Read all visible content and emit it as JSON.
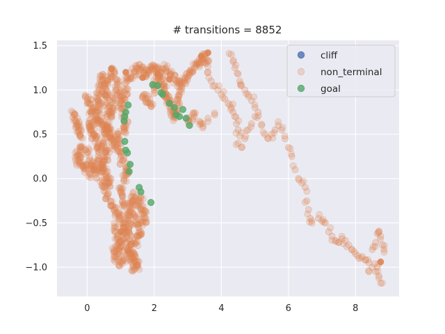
{
  "chart_data": {
    "type": "scatter",
    "title": "# transitions = 8852",
    "xlabel": "",
    "ylabel": "",
    "xlim": [
      -0.9,
      9.3
    ],
    "ylim": [
      -1.33,
      1.56
    ],
    "x_ticks": [
      0,
      2,
      4,
      6,
      8
    ],
    "y_ticks": [
      -1.0,
      -0.5,
      0.0,
      0.5,
      1.0,
      1.5
    ],
    "x_tick_labels": [
      "0",
      "2",
      "4",
      "6",
      "8"
    ],
    "y_tick_labels": [
      "−1.0",
      "−0.5",
      "0.0",
      "0.5",
      "1.0",
      "1.5"
    ],
    "grid": true,
    "legend_position": "top-right",
    "series": [
      {
        "name": "cliff",
        "color": "#4c72b0",
        "points": []
      },
      {
        "name": "non_terminal",
        "color": "#dd8452",
        "points": [
          [
            -0.4,
            0.72
          ],
          [
            -0.35,
            0.65
          ],
          [
            -0.3,
            0.6
          ],
          [
            -0.25,
            0.55
          ],
          [
            -0.2,
            0.5
          ],
          [
            -0.2,
            0.35
          ],
          [
            -0.25,
            0.28
          ],
          [
            -0.3,
            0.25
          ],
          [
            -0.25,
            0.2
          ],
          [
            -0.15,
            0.15
          ],
          [
            -0.05,
            0.1
          ],
          [
            0.0,
            0.9
          ],
          [
            0.05,
            0.85
          ],
          [
            0.1,
            0.75
          ],
          [
            0.05,
            0.62
          ],
          [
            0.1,
            0.55
          ],
          [
            0.0,
            0.3
          ],
          [
            0.05,
            0.2
          ],
          [
            0.15,
            0.15
          ],
          [
            0.1,
            0.05
          ],
          [
            0.2,
            0.5
          ],
          [
            0.25,
            0.45
          ],
          [
            0.3,
            0.35
          ],
          [
            0.35,
            0.3
          ],
          [
            0.3,
            0.2
          ],
          [
            0.3,
            0.9
          ],
          [
            0.35,
            1.0
          ],
          [
            0.4,
            1.1
          ],
          [
            0.45,
            1.15
          ],
          [
            0.5,
            1.05
          ],
          [
            0.55,
            0.95
          ],
          [
            0.6,
            0.85
          ],
          [
            0.65,
            0.75
          ],
          [
            0.7,
            0.7
          ],
          [
            0.75,
            0.8
          ],
          [
            0.8,
            0.9
          ],
          [
            0.85,
            1.0
          ],
          [
            0.9,
            1.08
          ],
          [
            0.95,
            0.95
          ],
          [
            1.0,
            0.85
          ],
          [
            0.6,
            0.6
          ],
          [
            0.65,
            0.55
          ],
          [
            0.7,
            0.5
          ],
          [
            0.75,
            0.45
          ],
          [
            0.8,
            0.4
          ],
          [
            0.85,
            0.35
          ],
          [
            0.55,
            0.5
          ],
          [
            0.5,
            0.55
          ],
          [
            0.45,
            0.6
          ],
          [
            0.4,
            0.65
          ],
          [
            0.45,
            0.15
          ],
          [
            0.5,
            0.1
          ],
          [
            0.55,
            0.05
          ],
          [
            0.6,
            0.0
          ],
          [
            0.65,
            -0.05
          ],
          [
            0.5,
            0.2
          ],
          [
            0.4,
            0.12
          ],
          [
            0.45,
            -0.05
          ],
          [
            0.55,
            -0.1
          ],
          [
            0.6,
            -0.2
          ],
          [
            0.7,
            -0.3
          ],
          [
            0.8,
            -0.35
          ],
          [
            0.9,
            -0.4
          ],
          [
            1.0,
            -0.45
          ],
          [
            1.1,
            -0.5
          ],
          [
            0.85,
            -0.55
          ],
          [
            0.9,
            -0.65
          ],
          [
            0.95,
            -0.72
          ],
          [
            1.0,
            -0.78
          ],
          [
            1.05,
            -0.7
          ],
          [
            1.1,
            -0.62
          ],
          [
            1.15,
            -0.55
          ],
          [
            1.2,
            -0.6
          ],
          [
            1.25,
            -0.68
          ],
          [
            1.3,
            -0.75
          ],
          [
            1.35,
            -0.82
          ],
          [
            1.4,
            -0.88
          ],
          [
            1.45,
            -0.95
          ],
          [
            1.5,
            -0.98
          ],
          [
            1.38,
            -1.0
          ],
          [
            1.3,
            -0.92
          ],
          [
            1.25,
            -0.85
          ],
          [
            1.2,
            -0.45
          ],
          [
            1.25,
            -0.38
          ],
          [
            1.3,
            -0.3
          ],
          [
            1.35,
            -0.25
          ],
          [
            1.4,
            -0.2
          ],
          [
            1.5,
            -0.3
          ],
          [
            1.6,
            -0.35
          ],
          [
            1.7,
            -0.4
          ],
          [
            1.75,
            -0.45
          ],
          [
            1.6,
            -0.5
          ],
          [
            1.55,
            -0.6
          ],
          [
            1.5,
            -0.65
          ],
          [
            1.45,
            -0.72
          ],
          [
            1.1,
            -0.3
          ],
          [
            1.05,
            -0.2
          ],
          [
            1.0,
            -0.1
          ],
          [
            1.1,
            0.0
          ],
          [
            1.2,
            0.05
          ],
          [
            1.15,
            0.12
          ],
          [
            1.05,
            0.2
          ],
          [
            1.0,
            0.3
          ],
          [
            0.95,
            0.4
          ],
          [
            0.9,
            0.5
          ],
          [
            1.1,
            0.55
          ],
          [
            1.15,
            0.6
          ],
          [
            1.1,
            0.7
          ],
          [
            1.05,
            0.8
          ],
          [
            1.1,
            0.9
          ],
          [
            1.15,
            1.0
          ],
          [
            1.2,
            1.1
          ],
          [
            1.3,
            1.15
          ],
          [
            1.4,
            1.2
          ],
          [
            1.5,
            1.25
          ],
          [
            1.6,
            1.22
          ],
          [
            1.7,
            1.18
          ],
          [
            1.8,
            1.2
          ],
          [
            1.9,
            1.25
          ],
          [
            2.0,
            1.27
          ],
          [
            2.1,
            1.22
          ],
          [
            2.15,
            1.15
          ],
          [
            2.2,
            1.1
          ],
          [
            2.25,
            1.05
          ],
          [
            2.3,
            1.0
          ],
          [
            2.35,
            0.95
          ],
          [
            2.4,
            0.9
          ],
          [
            2.45,
            0.85
          ],
          [
            2.5,
            0.8
          ],
          [
            2.55,
            0.75
          ],
          [
            2.6,
            0.7
          ],
          [
            2.65,
            0.75
          ],
          [
            2.7,
            0.85
          ],
          [
            2.75,
            0.95
          ],
          [
            2.8,
            1.05
          ],
          [
            2.9,
            1.1
          ],
          [
            3.0,
            1.15
          ],
          [
            3.1,
            1.2
          ],
          [
            3.2,
            1.25
          ],
          [
            3.3,
            1.3
          ],
          [
            3.4,
            1.35
          ],
          [
            3.5,
            1.4
          ],
          [
            3.55,
            1.3
          ],
          [
            3.6,
            1.2
          ],
          [
            3.7,
            1.1
          ],
          [
            3.8,
            1.05
          ],
          [
            3.9,
            1.0
          ],
          [
            4.0,
            0.95
          ],
          [
            4.1,
            0.9
          ],
          [
            4.2,
            0.85
          ],
          [
            4.3,
            0.8
          ],
          [
            4.35,
            0.75
          ],
          [
            4.4,
            0.7
          ],
          [
            4.45,
            0.62
          ],
          [
            4.5,
            0.55
          ],
          [
            4.55,
            0.48
          ],
          [
            4.5,
            0.4
          ],
          [
            4.6,
            0.35
          ],
          [
            4.7,
            0.45
          ],
          [
            4.8,
            0.55
          ],
          [
            4.9,
            0.62
          ],
          [
            5.0,
            0.7
          ],
          [
            5.1,
            0.75
          ],
          [
            5.2,
            0.6
          ],
          [
            5.3,
            0.5
          ],
          [
            5.4,
            0.45
          ],
          [
            5.5,
            0.5
          ],
          [
            5.6,
            0.55
          ],
          [
            5.7,
            0.6
          ],
          [
            5.8,
            0.55
          ],
          [
            5.9,
            0.45
          ],
          [
            6.0,
            0.35
          ],
          [
            6.1,
            0.25
          ],
          [
            6.2,
            0.1
          ],
          [
            6.3,
            0.0
          ],
          [
            6.4,
            -0.05
          ],
          [
            6.5,
            -0.1
          ],
          [
            6.55,
            -0.25
          ],
          [
            6.6,
            -0.35
          ],
          [
            6.65,
            -0.45
          ],
          [
            6.7,
            -0.5
          ],
          [
            6.9,
            -0.45
          ],
          [
            7.0,
            -0.48
          ],
          [
            7.1,
            -0.5
          ],
          [
            7.2,
            -0.6
          ],
          [
            7.3,
            -0.65
          ],
          [
            7.4,
            -0.7
          ],
          [
            7.5,
            -0.72
          ],
          [
            7.6,
            -0.68
          ],
          [
            7.7,
            -0.7
          ],
          [
            7.8,
            -0.75
          ],
          [
            7.9,
            -0.8
          ],
          [
            8.0,
            -0.85
          ],
          [
            8.1,
            -0.9
          ],
          [
            8.2,
            -0.88
          ],
          [
            8.3,
            -0.92
          ],
          [
            8.4,
            -0.95
          ],
          [
            8.5,
            -0.8
          ],
          [
            8.6,
            -0.72
          ],
          [
            8.65,
            -0.62
          ],
          [
            8.7,
            -0.6
          ],
          [
            8.75,
            -0.65
          ],
          [
            8.8,
            -0.75
          ],
          [
            8.85,
            -0.8
          ],
          [
            8.65,
            -1.0
          ],
          [
            8.7,
            -1.1
          ],
          [
            8.75,
            -1.18
          ],
          [
            8.6,
            -1.05
          ],
          [
            8.5,
            -1.0
          ],
          [
            8.4,
            -1.05
          ],
          [
            4.3,
            1.4
          ],
          [
            4.35,
            1.32
          ],
          [
            4.4,
            1.25
          ],
          [
            4.5,
            1.18
          ],
          [
            4.55,
            1.1
          ],
          [
            4.6,
            1.05
          ],
          [
            4.7,
            1.0
          ],
          [
            4.8,
            0.95
          ],
          [
            4.9,
            0.88
          ],
          [
            5.0,
            0.8
          ],
          [
            3.0,
            0.65
          ],
          [
            3.2,
            0.7
          ],
          [
            3.4,
            0.62
          ],
          [
            3.6,
            0.68
          ],
          [
            3.8,
            0.72
          ],
          [
            2.2,
            1.2
          ],
          [
            2.35,
            1.25
          ],
          [
            2.5,
            1.18
          ],
          [
            2.6,
            1.12
          ],
          [
            2.7,
            1.08
          ],
          [
            1.7,
            0.95
          ],
          [
            1.8,
            0.9
          ],
          [
            1.9,
            0.85
          ],
          [
            2.0,
            1.0
          ],
          [
            2.05,
            1.1
          ],
          [
            0.2,
            0.8
          ],
          [
            0.25,
            0.7
          ],
          [
            0.15,
            0.6
          ],
          [
            0.2,
            0.1
          ],
          [
            0.25,
            0.05
          ],
          [
            0.8,
            -0.8
          ],
          [
            0.85,
            -0.9
          ],
          [
            0.9,
            -0.85
          ],
          [
            1.0,
            -0.95
          ],
          [
            1.1,
            -0.9
          ],
          [
            1.2,
            -0.8
          ],
          [
            1.3,
            -0.5
          ],
          [
            1.4,
            -0.42
          ],
          [
            1.5,
            -0.52
          ],
          [
            1.6,
            -0.22
          ],
          [
            0.7,
            1.15
          ],
          [
            0.8,
            1.2
          ],
          [
            0.6,
            1.1
          ],
          [
            0.5,
            0.95
          ],
          [
            0.4,
            0.85
          ],
          [
            0.35,
            0.75
          ],
          [
            0.3,
            0.65
          ],
          [
            0.45,
            0.4
          ],
          [
            0.55,
            0.3
          ],
          [
            0.6,
            0.25
          ]
        ]
      },
      {
        "name": "goal",
        "color": "#55a868",
        "points": [
          [
            1.22,
            0.83
          ],
          [
            1.15,
            0.75
          ],
          [
            1.12,
            0.7
          ],
          [
            1.1,
            0.65
          ],
          [
            1.12,
            0.42
          ],
          [
            1.15,
            0.32
          ],
          [
            1.2,
            0.29
          ],
          [
            1.28,
            0.16
          ],
          [
            1.25,
            0.08
          ],
          [
            1.55,
            -0.1
          ],
          [
            1.6,
            -0.15
          ],
          [
            1.9,
            -0.27
          ],
          [
            1.95,
            1.06
          ],
          [
            2.1,
            1.05
          ],
          [
            2.2,
            0.97
          ],
          [
            2.25,
            0.95
          ],
          [
            2.45,
            0.85
          ],
          [
            2.6,
            0.8
          ],
          [
            2.65,
            0.72
          ],
          [
            2.75,
            0.7
          ],
          [
            2.95,
            0.68
          ],
          [
            3.05,
            0.6
          ],
          [
            2.85,
            0.78
          ]
        ]
      }
    ],
    "highlight_points": [
      [
        0.72,
        1.24
      ],
      [
        1.15,
        1.2
      ],
      [
        1.65,
        1.14
      ],
      [
        2.1,
        1.18
      ],
      [
        2.45,
        1.12
      ],
      [
        3.4,
        1.38
      ],
      [
        3.6,
        1.42
      ],
      [
        8.75,
        -0.94
      ],
      [
        0.6,
        0.55
      ],
      [
        1.0,
        -0.6
      ]
    ]
  },
  "legend": {
    "items": [
      {
        "label": "cliff",
        "color": "#4c72b0",
        "alpha": 0.8
      },
      {
        "label": "non_terminal",
        "color": "#dd8452",
        "alpha": 0.25
      },
      {
        "label": "goal",
        "color": "#55a868",
        "alpha": 0.8
      }
    ]
  },
  "style": {
    "plot_background": "#eaeaf2",
    "grid_color": "#ffffff",
    "text_color": "#262626"
  }
}
